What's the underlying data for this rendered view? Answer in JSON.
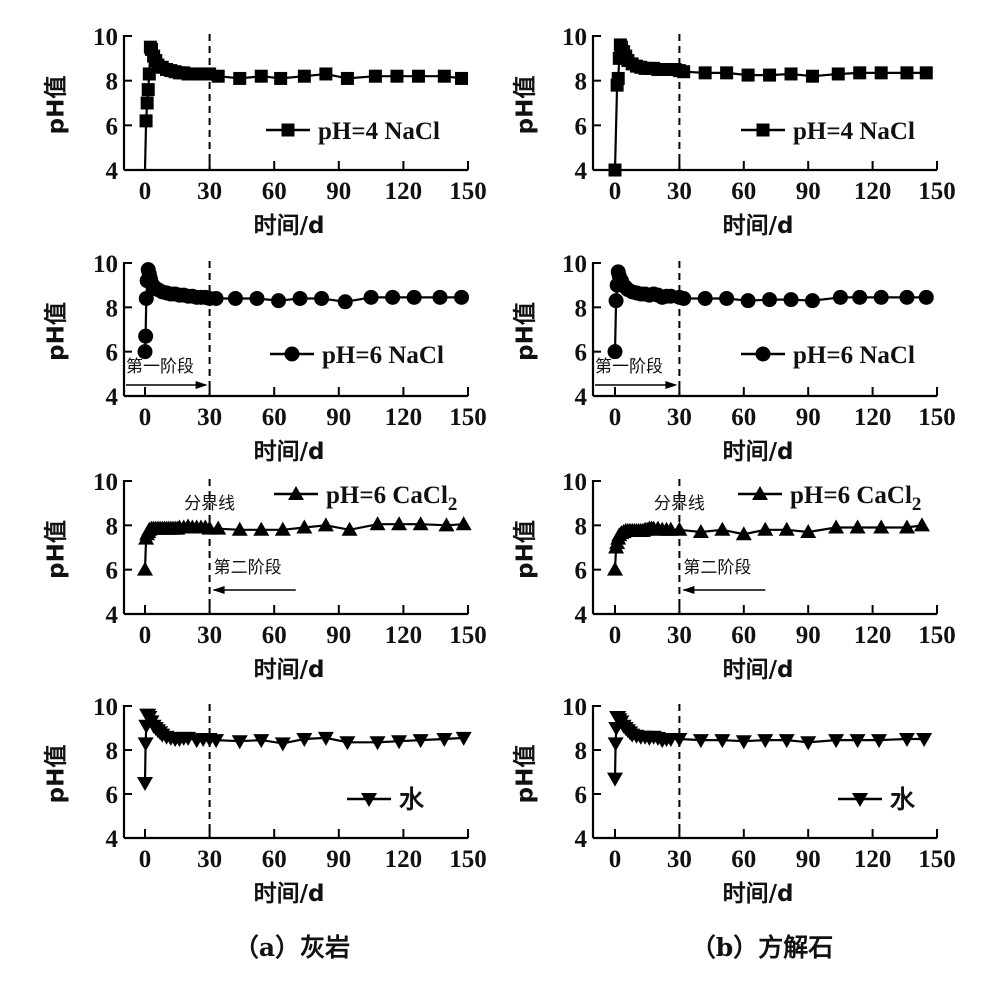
{
  "chart_data": [
    {
      "type": "line",
      "panel": "a",
      "marker": "square",
      "legend": "pH=4 NaCl",
      "xlabel": "时间/d",
      "ylabel": "pH值",
      "xlim": [
        -10,
        150
      ],
      "ylim": [
        4,
        10
      ],
      "xticks": [
        "0",
        "30",
        "60",
        "90",
        "120",
        "150"
      ],
      "yticks": [
        "4",
        "6",
        "8",
        "10"
      ],
      "boundary_x": 30,
      "x": [
        0,
        0.5,
        1,
        1.5,
        2,
        2.5,
        3,
        4,
        5,
        6,
        8,
        10,
        12,
        14,
        16,
        18,
        20,
        22,
        24,
        26,
        28,
        30,
        34,
        44,
        54,
        63,
        74,
        84,
        94,
        107,
        117,
        127,
        139,
        147
      ],
      "y": [
        4,
        6.2,
        7.0,
        7.6,
        8.3,
        9.5,
        9.4,
        9.1,
        8.9,
        8.7,
        8.6,
        8.5,
        8.45,
        8.4,
        8.35,
        8.35,
        8.3,
        8.3,
        8.3,
        8.3,
        8.3,
        8.3,
        8.2,
        8.1,
        8.2,
        8.1,
        8.2,
        8.3,
        8.1,
        8.2,
        8.2,
        8.2,
        8.2,
        8.1
      ]
    },
    {
      "type": "line",
      "panel": "b",
      "marker": "square",
      "legend": "pH=4 NaCl",
      "xlabel": "时间/d",
      "ylabel": "pH值",
      "xlim": [
        -10,
        150
      ],
      "ylim": [
        4,
        10
      ],
      "xticks": [
        "0",
        "30",
        "60",
        "90",
        "120",
        "150"
      ],
      "yticks": [
        "4",
        "6",
        "8",
        "10"
      ],
      "boundary_x": 30,
      "x": [
        0,
        1,
        1.5,
        2,
        2.5,
        3,
        4,
        5,
        6,
        8,
        10,
        12,
        14,
        16,
        18,
        20,
        22,
        24,
        26,
        28,
        30,
        32,
        42,
        52,
        62,
        72,
        82,
        92,
        104,
        114,
        124,
        136,
        145
      ],
      "y": [
        4,
        7.8,
        8.1,
        9.0,
        9.6,
        9.5,
        9.3,
        9.1,
        8.9,
        8.75,
        8.65,
        8.6,
        8.55,
        8.55,
        8.55,
        8.5,
        8.5,
        8.5,
        8.5,
        8.5,
        8.45,
        8.4,
        8.35,
        8.35,
        8.25,
        8.25,
        8.3,
        8.2,
        8.3,
        8.35,
        8.35,
        8.35,
        8.35
      ]
    },
    {
      "type": "line",
      "panel": "a",
      "marker": "circle",
      "legend": "pH=6 NaCl",
      "xlabel": "时间/d",
      "ylabel": "pH值",
      "xlim": [
        -10,
        150
      ],
      "ylim": [
        4,
        10
      ],
      "xticks": [
        "0",
        "30",
        "60",
        "90",
        "120",
        "150"
      ],
      "yticks": [
        "4",
        "6",
        "8",
        "10"
      ],
      "boundary_x": 30,
      "stage_label": "第一阶段",
      "x": [
        0,
        0.3,
        0.6,
        1,
        1.5,
        2,
        2.5,
        3,
        4,
        5,
        6,
        8,
        10,
        12,
        14,
        16,
        18,
        20,
        22,
        24,
        26,
        28,
        30,
        33,
        42,
        52,
        62,
        72,
        82,
        93,
        105,
        115,
        125,
        137,
        147
      ],
      "y": [
        6.0,
        6.7,
        8.4,
        9.2,
        9.7,
        9.5,
        9.3,
        9.1,
        8.95,
        8.85,
        8.8,
        8.7,
        8.65,
        8.6,
        8.6,
        8.55,
        8.55,
        8.5,
        8.5,
        8.45,
        8.45,
        8.45,
        8.4,
        8.4,
        8.4,
        8.4,
        8.3,
        8.4,
        8.4,
        8.25,
        8.45,
        8.45,
        8.45,
        8.45,
        8.45
      ]
    },
    {
      "type": "line",
      "panel": "b",
      "marker": "circle",
      "legend": "pH=6 NaCl",
      "xlabel": "时间/d",
      "ylabel": "pH值",
      "xlim": [
        -10,
        150
      ],
      "ylim": [
        4,
        10
      ],
      "xticks": [
        "0",
        "30",
        "60",
        "90",
        "120",
        "150"
      ],
      "yticks": [
        "4",
        "6",
        "8",
        "10"
      ],
      "boundary_x": 30,
      "stage_label": "第一阶段",
      "x": [
        0,
        0.5,
        1,
        1.5,
        2,
        3,
        4,
        5,
        6,
        8,
        10,
        12,
        14,
        16,
        18,
        20,
        22,
        24,
        26,
        30,
        32,
        42,
        52,
        62,
        72,
        82,
        92,
        105,
        114,
        124,
        136,
        145
      ],
      "y": [
        6.0,
        8.3,
        9.0,
        9.6,
        9.4,
        9.2,
        9.0,
        8.9,
        8.8,
        8.7,
        8.65,
        8.6,
        8.6,
        8.55,
        8.6,
        8.55,
        8.45,
        8.5,
        8.5,
        8.45,
        8.4,
        8.4,
        8.4,
        8.3,
        8.35,
        8.35,
        8.3,
        8.45,
        8.45,
        8.45,
        8.45,
        8.45
      ]
    },
    {
      "type": "line",
      "panel": "a",
      "marker": "triangle-up",
      "legend": "pH=6 CaCl",
      "legend_sub": "2",
      "xlabel": "时间/d",
      "ylabel": "pH值",
      "xlim": [
        -10,
        150
      ],
      "ylim": [
        4,
        10
      ],
      "xticks": [
        "0",
        "30",
        "60",
        "90",
        "120",
        "150"
      ],
      "yticks": [
        "4",
        "6",
        "8",
        "10"
      ],
      "boundary_x": 30,
      "boundary_label": "分界线",
      "stage_label": "第二阶段",
      "x": [
        0,
        0.5,
        1,
        1.5,
        2,
        3,
        4,
        5,
        6,
        7,
        8,
        9,
        10,
        11,
        12,
        13,
        14,
        15,
        16,
        18,
        20,
        22,
        24,
        26,
        28,
        30,
        34,
        44,
        54,
        64,
        74,
        84,
        95,
        108,
        118,
        128,
        140,
        148
      ],
      "y": [
        6.0,
        7.4,
        7.6,
        7.7,
        7.8,
        7.85,
        7.85,
        7.85,
        7.85,
        7.85,
        7.85,
        7.85,
        7.85,
        7.85,
        7.85,
        7.85,
        7.85,
        7.85,
        7.9,
        7.9,
        7.95,
        7.9,
        7.9,
        7.9,
        7.9,
        7.85,
        7.85,
        7.8,
        7.8,
        7.8,
        7.9,
        8.0,
        7.8,
        8.05,
        8.05,
        8.05,
        8.0,
        8.05
      ]
    },
    {
      "type": "line",
      "panel": "b",
      "marker": "triangle-up",
      "legend": "pH=6 CaCl",
      "legend_sub": "2",
      "xlabel": "时间/d",
      "ylabel": "pH值",
      "xlim": [
        -10,
        150
      ],
      "ylim": [
        4,
        10
      ],
      "xticks": [
        "0",
        "30",
        "60",
        "90",
        "120",
        "150"
      ],
      "yticks": [
        "4",
        "6",
        "8",
        "10"
      ],
      "boundary_x": 30,
      "boundary_label": "分界线",
      "stage_label": "第二阶段",
      "x": [
        0,
        0.5,
        1,
        1.5,
        2,
        3,
        4,
        5,
        6,
        7,
        8,
        9,
        10,
        11,
        12,
        13,
        14,
        15,
        16,
        17,
        18,
        20,
        22,
        24,
        26,
        30,
        40,
        50,
        60,
        70,
        80,
        90,
        103,
        113,
        124,
        136,
        143
      ],
      "y": [
        6.0,
        7.0,
        7.2,
        7.4,
        7.55,
        7.65,
        7.7,
        7.75,
        7.75,
        7.75,
        7.75,
        7.75,
        7.75,
        7.75,
        7.75,
        7.75,
        7.8,
        7.8,
        7.85,
        7.85,
        7.85,
        7.85,
        7.8,
        7.8,
        7.8,
        7.8,
        7.7,
        7.8,
        7.6,
        7.8,
        7.8,
        7.7,
        7.9,
        7.9,
        7.9,
        7.9,
        8.0
      ]
    },
    {
      "type": "line",
      "panel": "a",
      "marker": "triangle-down",
      "legend": "水",
      "xlabel": "时间/d",
      "ylabel": "pH值",
      "xlim": [
        -10,
        150
      ],
      "ylim": [
        4,
        10
      ],
      "xticks": [
        "0",
        "30",
        "60",
        "90",
        "120",
        "150"
      ],
      "yticks": [
        "4",
        "6",
        "8",
        "10"
      ],
      "boundary_x": 30,
      "x": [
        0,
        0.3,
        0.6,
        1,
        1.5,
        2,
        3,
        4,
        5,
        6,
        7,
        8,
        10,
        12,
        14,
        16,
        18,
        20,
        24,
        27,
        30,
        33,
        44,
        54,
        64,
        74,
        84,
        94,
        108,
        118,
        128,
        139,
        148
      ],
      "y": [
        6.5,
        8.3,
        9.1,
        9.6,
        9.6,
        9.5,
        9.3,
        9.1,
        9.0,
        8.9,
        8.8,
        8.7,
        8.6,
        8.55,
        8.5,
        8.5,
        8.55,
        8.55,
        8.45,
        8.5,
        8.5,
        8.45,
        8.4,
        8.45,
        8.3,
        8.5,
        8.55,
        8.35,
        8.35,
        8.4,
        8.45,
        8.5,
        8.55
      ]
    },
    {
      "type": "line",
      "panel": "b",
      "marker": "triangle-down",
      "legend": "水",
      "xlabel": "时间/d",
      "ylabel": "pH值",
      "xlim": [
        -10,
        150
      ],
      "ylim": [
        4,
        10
      ],
      "xticks": [
        "0",
        "30",
        "60",
        "90",
        "120",
        "150"
      ],
      "yticks": [
        "4",
        "6",
        "8",
        "10"
      ],
      "boundary_x": 30,
      "x": [
        0,
        0.3,
        0.6,
        1,
        1.5,
        2,
        3,
        4,
        5,
        6,
        7,
        8,
        10,
        12,
        14,
        16,
        18,
        20,
        22,
        24,
        26,
        30,
        40,
        50,
        60,
        70,
        80,
        90,
        103,
        113,
        123,
        136,
        144
      ],
      "y": [
        6.7,
        8.3,
        9.0,
        9.5,
        9.5,
        9.4,
        9.3,
        9.1,
        9.0,
        8.9,
        8.8,
        8.7,
        8.65,
        8.6,
        8.6,
        8.55,
        8.6,
        8.55,
        8.45,
        8.5,
        8.5,
        8.5,
        8.45,
        8.45,
        8.4,
        8.45,
        8.45,
        8.35,
        8.45,
        8.45,
        8.45,
        8.5,
        8.5
      ]
    }
  ],
  "captions": {
    "a": "（a）灰岩",
    "b": "（b）方解石"
  }
}
